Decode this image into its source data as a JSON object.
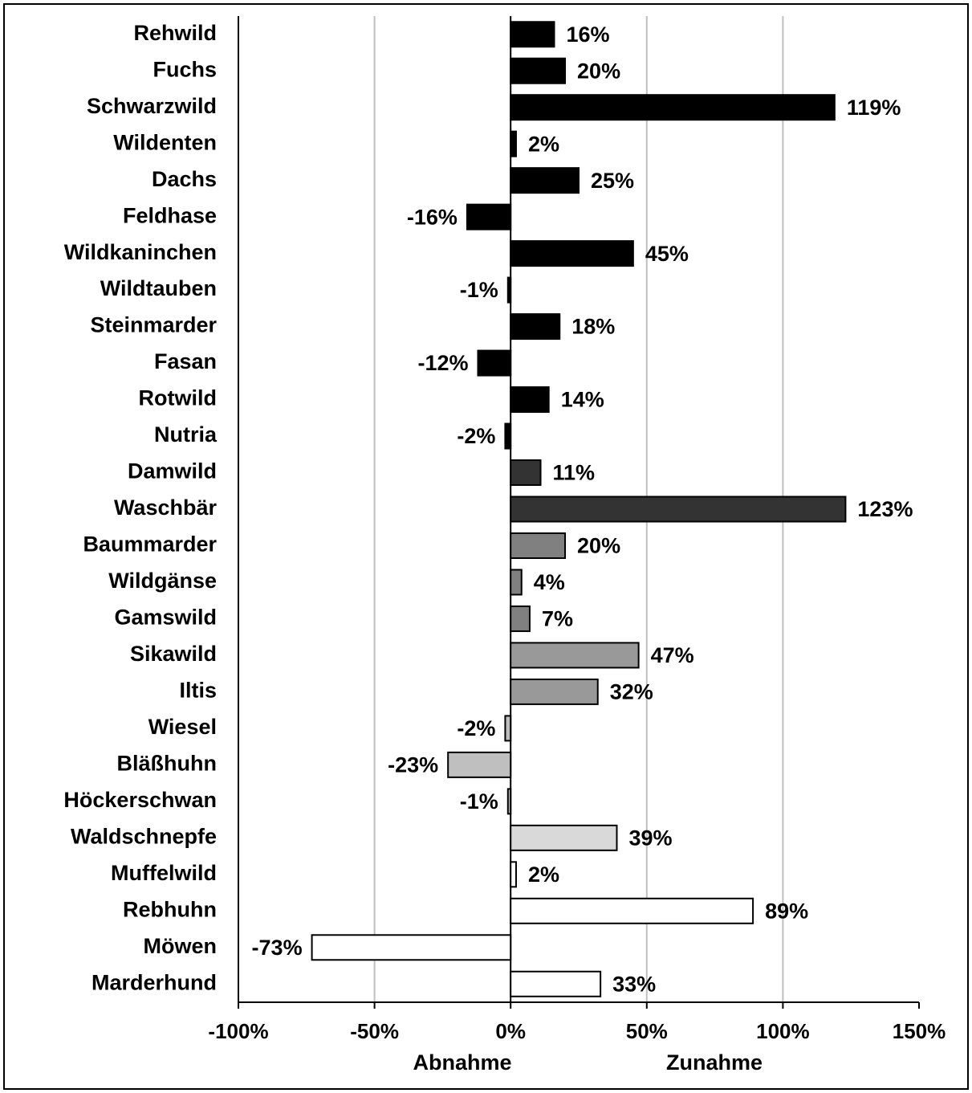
{
  "chart_data": {
    "type": "bar",
    "orientation": "horizontal",
    "categories": [
      "Rehwild",
      "Fuchs",
      "Schwarzwild",
      "Wildenten",
      "Dachs",
      "Feldhase",
      "Wildkaninchen",
      "Wildtauben",
      "Steinmarder",
      "Fasan",
      "Rotwild",
      "Nutria",
      "Damwild",
      "Waschbär",
      "Baummarder",
      "Wildgänse",
      "Gamswild",
      "Sikawild",
      "Iltis",
      "Wiesel",
      "Bläßhuhn",
      "Höckerschwan",
      "Waldschnepfe",
      "Muffelwild",
      "Rebhuhn",
      "Möwen",
      "Marderhund"
    ],
    "values": [
      16,
      20,
      119,
      2,
      25,
      -16,
      45,
      -1,
      18,
      -12,
      14,
      -2,
      11,
      123,
      20,
      4,
      7,
      47,
      32,
      -2,
      -23,
      -1,
      39,
      2,
      89,
      -73,
      33
    ],
    "value_labels": [
      "16%",
      "20%",
      "119%",
      "2%",
      "25%",
      "-16%",
      "45%",
      "-1%",
      "18%",
      "-12%",
      "14%",
      "-2%",
      "11%",
      "123%",
      "20%",
      "4%",
      "7%",
      "47%",
      "32%",
      "-2%",
      "-23%",
      "-1%",
      "39%",
      "2%",
      "89%",
      "-73%",
      "33%"
    ],
    "colors": [
      "#000000",
      "#000000",
      "#000000",
      "#000000",
      "#000000",
      "#000000",
      "#000000",
      "#000000",
      "#000000",
      "#000000",
      "#000000",
      "#000000",
      "#333333",
      "#333333",
      "#808080",
      "#808080",
      "#808080",
      "#999999",
      "#999999",
      "#bfbfbf",
      "#bfbfbf",
      "#bfbfbf",
      "#d9d9d9",
      "#ffffff",
      "#ffffff",
      "#ffffff",
      "#ffffff"
    ],
    "xlim": [
      -100,
      150
    ],
    "xticks": [
      {
        "value": -100,
        "label": "-100%"
      },
      {
        "value": -50,
        "label": "-50%"
      },
      {
        "value": 0,
        "label": "0%"
      },
      {
        "value": 50,
        "label": "50%"
      },
      {
        "value": 100,
        "label": "100%"
      },
      {
        "value": 150,
        "label": "150%"
      }
    ],
    "xlabel_left": "Abnahme",
    "xlabel_right": "Zunahme",
    "grid": true
  }
}
